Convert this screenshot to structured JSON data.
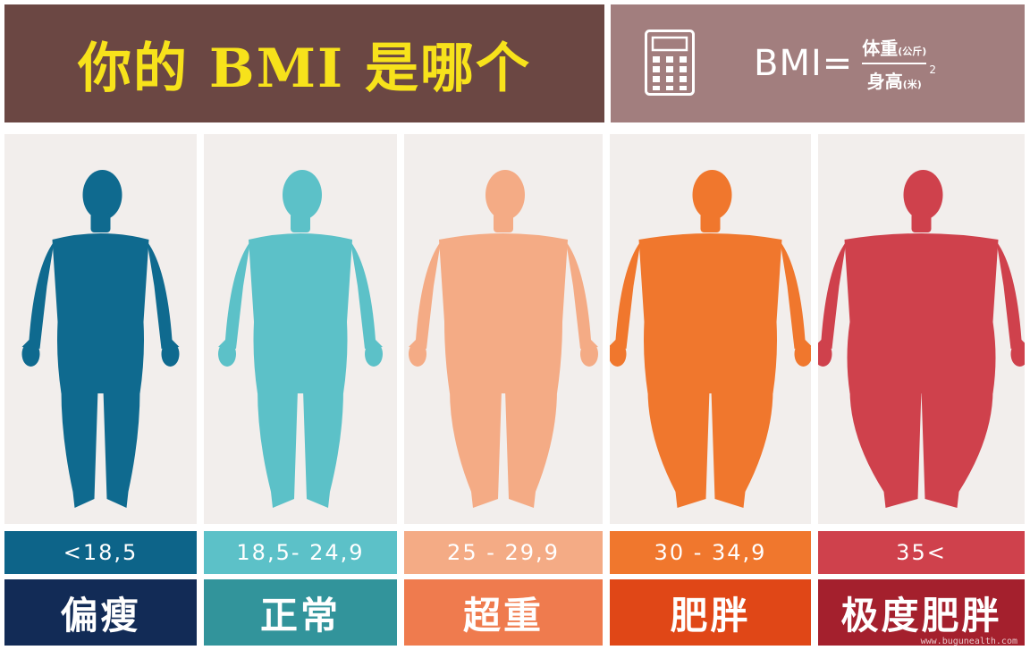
{
  "header": {
    "title": "你的 BMI 是哪个",
    "formula_lhs": "BMI=",
    "numerator": "体重",
    "numerator_unit": "(公斤)",
    "denominator": "身高",
    "denominator_unit": "(米)",
    "exponent": "2",
    "icon": "calculator-icon"
  },
  "categories": [
    {
      "range": "<18,5",
      "label": "偏瘦",
      "figure_color": "#0f6a8f",
      "range_color": "#0d6489",
      "label_color": "#122b56"
    },
    {
      "range": "18,5- 24,9",
      "label": "正常",
      "figure_color": "#5cc1c8",
      "range_color": "#5cc1c8",
      "label_color": "#32949b"
    },
    {
      "range": "25 - 29,9",
      "label": "超重",
      "figure_color": "#f4ab85",
      "range_color": "#f4ab85",
      "label_color": "#ef7b4e"
    },
    {
      "range": "30 - 34,9",
      "label": "肥胖",
      "figure_color": "#f0772d",
      "range_color": "#f0772d",
      "label_color": "#e04717"
    },
    {
      "range": "35<",
      "label": "极度肥胖",
      "figure_color": "#cf414c",
      "range_color": "#cf414c",
      "label_color": "#a4202d"
    }
  ],
  "watermark": "www.bugunealth.com"
}
